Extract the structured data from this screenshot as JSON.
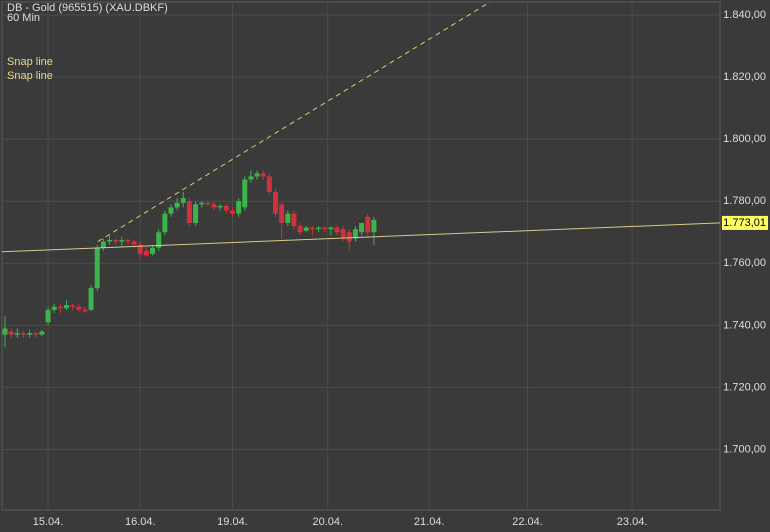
{
  "chart_data": {
    "type": "candlestick",
    "title": "DB - Gold (965515) (XAU.DBKF)",
    "subtitle": "60 Min",
    "annotations": [
      "Snap line",
      "Snap line"
    ],
    "up_color": "#3cb44b",
    "down_color": "#d0313d",
    "grid": true,
    "xlim": [
      -0.49,
      116.3
    ],
    "ylim": [
      1680.5,
      1844.2
    ],
    "xticks": [
      {
        "value": 7,
        "label": "15.04."
      },
      {
        "value": 22,
        "label": "16.04."
      },
      {
        "value": 37,
        "label": "19.04."
      },
      {
        "value": 52.5,
        "label": "20.04."
      },
      {
        "value": 69,
        "label": "21.04."
      },
      {
        "value": 85,
        "label": "22.04."
      },
      {
        "value": 102,
        "label": "23.04."
      }
    ],
    "yticks": [
      {
        "value": 1700,
        "label": "1.700,00"
      },
      {
        "value": 1720,
        "label": "1.720,00"
      },
      {
        "value": 1740,
        "label": "1.740,00"
      },
      {
        "value": 1760,
        "label": "1.760,00"
      },
      {
        "value": 1780,
        "label": "1.780,00"
      },
      {
        "value": 1800,
        "label": "1.800,00"
      },
      {
        "value": 1820,
        "label": "1.820,00"
      },
      {
        "value": 1840,
        "label": "1.840,00"
      }
    ],
    "last_price": {
      "value": 1773.01,
      "label": "1.773,01"
    },
    "trendlines": [
      {
        "style": "solid",
        "color": "#d8cc8a",
        "x": [
          -0.49,
          116.3
        ],
        "y": [
          1763.7,
          1773.01
        ]
      },
      {
        "style": "dashed",
        "color": "#d8cc6a",
        "x": [
          15.1,
          78.9
        ],
        "y": [
          1767,
          1844.2
        ]
      }
    ],
    "x": [
      0,
      1,
      2,
      3,
      4,
      5,
      6,
      7,
      8,
      9,
      10,
      11,
      12,
      13,
      14,
      15,
      16,
      17,
      18,
      19,
      20,
      21,
      22,
      23,
      24,
      25,
      26,
      27,
      28,
      29,
      30,
      31,
      32,
      33,
      34,
      35,
      36,
      37,
      38,
      39,
      40,
      41,
      42,
      43,
      44,
      45,
      46,
      47,
      48,
      49,
      50,
      51,
      52,
      53,
      54,
      55,
      56,
      57,
      58,
      59,
      60
    ],
    "open": [
      1737,
      1738,
      1737,
      1737.5,
      1737,
      1737.5,
      1737,
      1741,
      1745,
      1746,
      1745.5,
      1746.5,
      1746,
      1745,
      1745,
      1752,
      1765,
      1767,
      1767.5,
      1767,
      1767.5,
      1767,
      1766,
      1764,
      1763,
      1765,
      1770,
      1776,
      1778,
      1779.5,
      1780,
      1773,
      1779,
      1779.5,
      1779,
      1778,
      1778.5,
      1777,
      1776,
      1778,
      1787,
      1788,
      1789,
      1788,
      1783,
      1779,
      1773,
      1776,
      1772,
      1770.5,
      1771.5,
      1771,
      1771.5,
      1771,
      1771.5,
      1771,
      1770,
      1768,
      1770,
      1775,
      1770
    ],
    "high": [
      1743,
      1739,
      1739,
      1738,
      1738.5,
      1738,
      1738.5,
      1746,
      1747,
      1747,
      1748,
      1747,
      1747,
      1746,
      1753,
      1766,
      1768,
      1769,
      1768,
      1768.5,
      1768,
      1767.5,
      1767,
      1765,
      1766,
      1771,
      1777,
      1779,
      1781,
      1783,
      1781,
      1780,
      1780,
      1780,
      1780,
      1779,
      1779,
      1778,
      1781,
      1788,
      1790,
      1790,
      1790,
      1789,
      1784,
      1780,
      1777,
      1777,
      1773,
      1772,
      1772,
      1772,
      1772,
      1772,
      1772,
      1772,
      1771,
      1772,
      1773,
      1776,
      1775
    ],
    "low": [
      1733,
      1736,
      1736,
      1736,
      1736,
      1736,
      1736.5,
      1740,
      1744,
      1744,
      1745,
      1745,
      1744.5,
      1744,
      1744.5,
      1751,
      1764,
      1766,
      1766,
      1765.5,
      1766,
      1765,
      1762,
      1762,
      1762.5,
      1764,
      1769,
      1775,
      1777,
      1778,
      1772,
      1772,
      1778,
      1778.5,
      1777,
      1777,
      1776,
      1775,
      1775,
      1777,
      1786,
      1787,
      1787,
      1782,
      1775,
      1768,
      1772,
      1771,
      1769,
      1770,
      1769,
      1770,
      1770,
      1769,
      1769,
      1767,
      1764,
      1767,
      1769,
      1769,
      1766
    ],
    "close": [
      1739,
      1737,
      1737.5,
      1737,
      1737.5,
      1737,
      1738,
      1745,
      1746,
      1745.5,
      1746.5,
      1746,
      1745,
      1744.5,
      1752,
      1765,
      1767,
      1767.5,
      1767,
      1767.5,
      1767,
      1766,
      1763,
      1762.5,
      1765,
      1770,
      1776,
      1778,
      1779.5,
      1781,
      1773,
      1779,
      1779.5,
      1779,
      1778,
      1778.5,
      1777,
      1776,
      1780,
      1787,
      1788,
      1789,
      1788,
      1783,
      1776,
      1773,
      1776,
      1772,
      1770,
      1771.5,
      1771,
      1771.5,
      1771,
      1771.5,
      1770,
      1768,
      1767,
      1771,
      1773,
      1770,
      1774
    ]
  }
}
